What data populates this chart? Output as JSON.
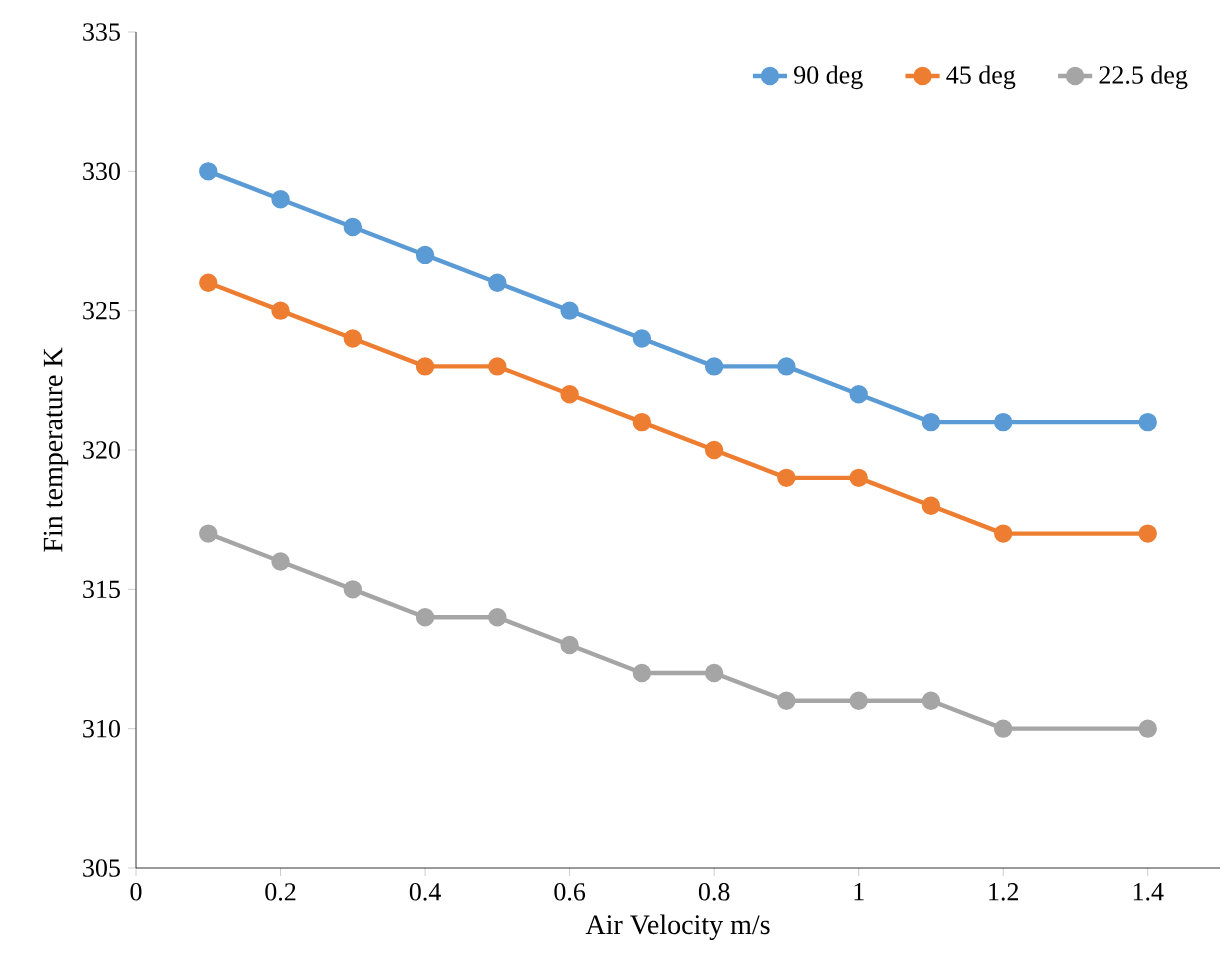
{
  "chart_data": {
    "type": "line",
    "xlabel": "Air Velocity m/s",
    "ylabel": "Fin temperature K",
    "x": [
      0.1,
      0.2,
      0.3,
      0.4,
      0.5,
      0.6,
      0.7,
      0.8,
      0.9,
      1.0,
      1.1,
      1.2,
      1.4
    ],
    "series": [
      {
        "name": "90 deg",
        "color": "#5b9bd5",
        "values": [
          330,
          329,
          328,
          327,
          326,
          325,
          324,
          323,
          323,
          322,
          321,
          321,
          321
        ]
      },
      {
        "name": "45 deg",
        "color": "#ed7d31",
        "values": [
          326,
          325,
          324,
          323,
          323,
          322,
          321,
          320,
          319,
          319,
          318,
          317,
          317
        ]
      },
      {
        "name": "22.5 deg",
        "color": "#a5a5a5",
        "values": [
          317,
          316,
          315,
          314,
          314,
          313,
          312,
          312,
          311,
          311,
          311,
          310,
          310
        ]
      }
    ],
    "xlim": [
      0,
      1.5
    ],
    "xticks": [
      0,
      0.2,
      0.4,
      0.6,
      0.8,
      1,
      1.2,
      1.4
    ],
    "ylim": [
      305,
      335
    ],
    "yticks": [
      305,
      310,
      315,
      320,
      325,
      330,
      335
    ],
    "grid": false,
    "legend": "top right",
    "marker": "circle",
    "line_style": "solid"
  }
}
